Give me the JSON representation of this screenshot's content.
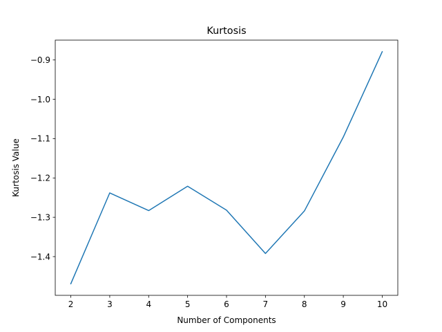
{
  "chart_data": {
    "type": "line",
    "title": "Kurtosis",
    "xlabel": "Number of Components",
    "ylabel": "Kurtosis Value",
    "x": [
      2,
      3,
      4,
      5,
      6,
      7,
      8,
      9,
      10
    ],
    "series": [
      {
        "values": [
          -1.469,
          -1.238,
          -1.283,
          -1.221,
          -1.282,
          -1.392,
          -1.284,
          -1.096,
          -0.879
        ],
        "color": "#1f77b4"
      }
    ],
    "xlim": [
      1.6,
      10.4
    ],
    "ylim": [
      -1.4985,
      -0.8495
    ],
    "xticks": [
      2,
      3,
      4,
      5,
      6,
      7,
      8,
      9,
      10
    ],
    "yticks": [
      -1.4,
      -1.3,
      -1.2,
      -1.1,
      -1.0,
      -0.9
    ],
    "ytick_labels": [
      "−1.4",
      "−1.3",
      "−1.2",
      "−1.1",
      "−1.0",
      "−0.9"
    ],
    "grid": false,
    "legend": "none"
  }
}
